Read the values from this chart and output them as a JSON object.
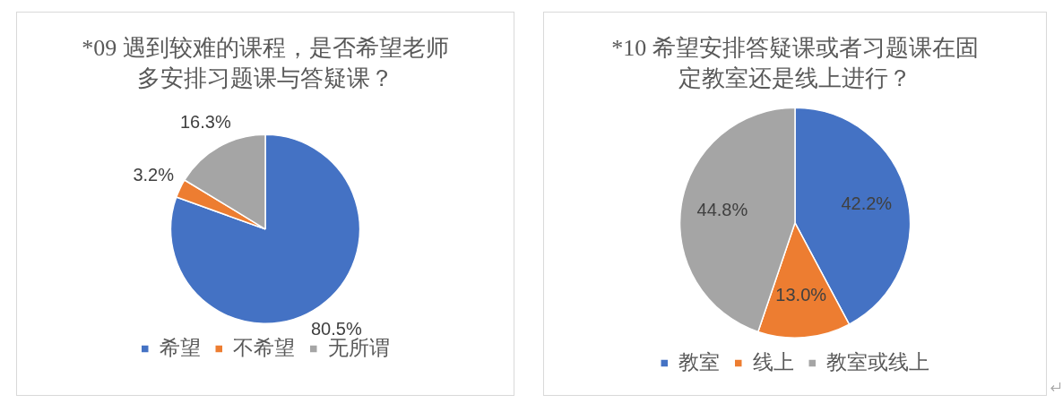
{
  "chart_data": [
    {
      "type": "pie",
      "title": "*09 遇到较难的课程，是否希望老师多安排习题课与答疑课？",
      "categories": [
        "希望",
        "不希望",
        "无所谓"
      ],
      "values": [
        80.5,
        3.2,
        16.3
      ],
      "colors": [
        "#4472c4",
        "#ed7d31",
        "#a5a5a5"
      ],
      "value_labels": [
        "80.5%",
        "3.2%",
        "16.3%"
      ],
      "legend": "bottom"
    },
    {
      "type": "pie",
      "title": "*10 希望安排答疑课或者习题课在固定教室还是线上进行？",
      "categories": [
        "教室",
        "线上",
        "教室或线上"
      ],
      "values": [
        42.2,
        13.0,
        44.8
      ],
      "colors": [
        "#4472c4",
        "#ed7d31",
        "#a5a5a5"
      ],
      "value_labels": [
        "42.2%",
        "13.0%",
        "44.8%"
      ],
      "legend": "bottom"
    }
  ]
}
